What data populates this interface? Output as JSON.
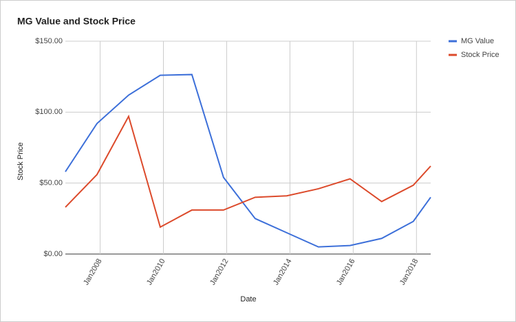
{
  "chart_data": {
    "type": "line",
    "title": "MG Value and Stock Price",
    "x_label": "Date",
    "y_label": "Stock Price",
    "x": [
      2006.9,
      2007.9,
      2008.9,
      2009.9,
      2010.9,
      2011.9,
      2012.9,
      2013.9,
      2014.9,
      2015.9,
      2016.9,
      2017.9,
      2018.45
    ],
    "series": [
      {
        "name": "MG Value",
        "color": "#3c6fd9",
        "values": [
          58,
          92,
          112,
          126,
          126.5,
          54,
          25,
          15,
          5,
          6,
          11,
          23,
          40
        ]
      },
      {
        "name": "Stock Price",
        "color": "#dc4a2b",
        "values": [
          33,
          56,
          97,
          19,
          31,
          31,
          40,
          41,
          46,
          53,
          37,
          48.5,
          62
        ]
      }
    ],
    "xlim": [
      2006.9,
      2018.45
    ],
    "xticks": [
      {
        "value": 2008,
        "label": "Jan2008"
      },
      {
        "value": 2010,
        "label": "Jan2010"
      },
      {
        "value": 2012,
        "label": "Jan2012"
      },
      {
        "value": 2014,
        "label": "Jan2014"
      },
      {
        "value": 2016,
        "label": "Jan2016"
      },
      {
        "value": 2018,
        "label": "Jan2018"
      }
    ],
    "ylim": [
      0,
      150
    ],
    "yticks": [
      {
        "value": 0,
        "label": "$0.00"
      },
      {
        "value": 50,
        "label": "$50.00"
      },
      {
        "value": 100,
        "label": "$100.00"
      },
      {
        "value": 150,
        "label": "$150.00"
      }
    ],
    "grid": true,
    "legend": "right"
  }
}
